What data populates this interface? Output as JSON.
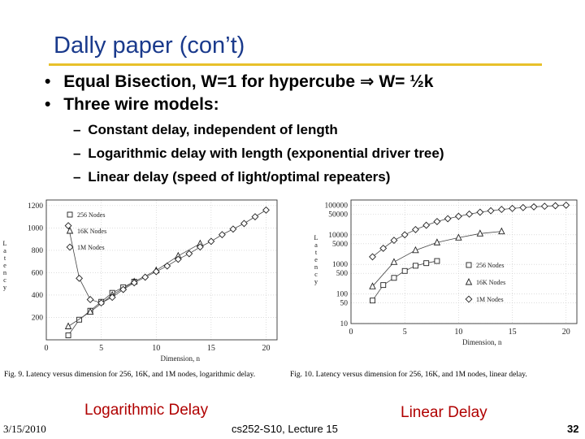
{
  "slide": {
    "title": "Dally paper (con’t)",
    "bullets": [
      {
        "marker": "•",
        "text_pre": "Equal Bisection, W=1 for hypercube ",
        "arrow": "⇒",
        "text_post": " W= ½k"
      },
      {
        "marker": "•",
        "text": "Three wire models:"
      }
    ],
    "sub_bullets": [
      {
        "marker": "–",
        "text": "Constant delay, independent of length"
      },
      {
        "marker": "–",
        "text": "Logarithmic delay with length (exponential driver tree)"
      },
      {
        "marker": "–",
        "text": "Linear delay (speed of light/optimal repeaters)"
      }
    ],
    "label_left": "Logarithmic Delay",
    "label_right": "Linear Delay",
    "footer": {
      "date": "3/15/2010",
      "course": "cs252-S10, Lecture 15",
      "page": "32"
    }
  },
  "figures": [
    {
      "caption": "Fig. 9.   Latency versus dimension for 256, 16K, and 1M nodes, logarithmic delay.",
      "ylabel": "Latency",
      "xlabel": "Dimension, n"
    },
    {
      "caption": "Fig. 10.   Latency versus dimension for 256, 16K, and 1M nodes, linear delay.",
      "ylabel": "Latency",
      "xlabel": "Dimension, n"
    }
  ],
  "chart_data": [
    {
      "type": "line",
      "xlabel": "Dimension, n",
      "ylabel": "Latency",
      "xlim": [
        0,
        21
      ],
      "ylim": [
        0,
        1250
      ],
      "scale": "linear",
      "xticks": [
        0,
        5,
        10,
        15,
        20
      ],
      "yticks": [
        200,
        400,
        600,
        800,
        1000,
        1200
      ],
      "legend": "top-left",
      "series": [
        {
          "name": "256 Nodes",
          "marker": "square",
          "x": [
            2,
            3,
            4,
            5,
            6,
            7,
            8
          ],
          "y": [
            40,
            180,
            260,
            340,
            420,
            470,
            520
          ]
        },
        {
          "name": "16K Nodes",
          "marker": "triangle",
          "x": [
            2,
            4,
            6,
            8,
            10,
            12,
            14
          ],
          "y": [
            120,
            250,
            400,
            520,
            620,
            750,
            860
          ]
        },
        {
          "name": "1M Nodes",
          "marker": "diamond",
          "x": [
            2,
            3,
            4,
            5,
            6,
            7,
            8,
            9,
            10,
            11,
            12,
            13,
            14,
            15,
            16,
            17,
            18,
            19,
            20
          ],
          "y": [
            1020,
            550,
            360,
            330,
            380,
            450,
            510,
            560,
            610,
            660,
            720,
            770,
            830,
            880,
            940,
            990,
            1040,
            1100,
            1160
          ]
        }
      ]
    },
    {
      "type": "line",
      "xlabel": "Dimension, n",
      "ylabel": "Latency",
      "xlim": [
        0,
        21
      ],
      "ylim": [
        10,
        150000
      ],
      "scale": "log",
      "xticks": [
        0,
        5,
        10,
        15,
        20
      ],
      "yticks": [
        10,
        50,
        100,
        500,
        1000,
        5000,
        10000,
        50000,
        100000
      ],
      "legend": "bottom-right",
      "series": [
        {
          "name": "256 Nodes",
          "marker": "square",
          "x": [
            2,
            3,
            4,
            5,
            6,
            7,
            8
          ],
          "y": [
            60,
            200,
            350,
            600,
            900,
            1100,
            1300
          ]
        },
        {
          "name": "16K Nodes",
          "marker": "triangle",
          "x": [
            2,
            4,
            6,
            8,
            10,
            12,
            14
          ],
          "y": [
            180,
            1200,
            3000,
            5500,
            8000,
            11000,
            13000
          ]
        },
        {
          "name": "1M Nodes",
          "marker": "diamond",
          "x": [
            2,
            3,
            4,
            5,
            6,
            7,
            8,
            9,
            10,
            11,
            12,
            13,
            14,
            15,
            16,
            17,
            18,
            19,
            20
          ],
          "y": [
            1800,
            3500,
            6500,
            10000,
            15000,
            21000,
            28000,
            35000,
            42000,
            50000,
            58000,
            65000,
            72000,
            78000,
            83000,
            88000,
            92000,
            96000,
            100000
          ]
        }
      ]
    }
  ]
}
